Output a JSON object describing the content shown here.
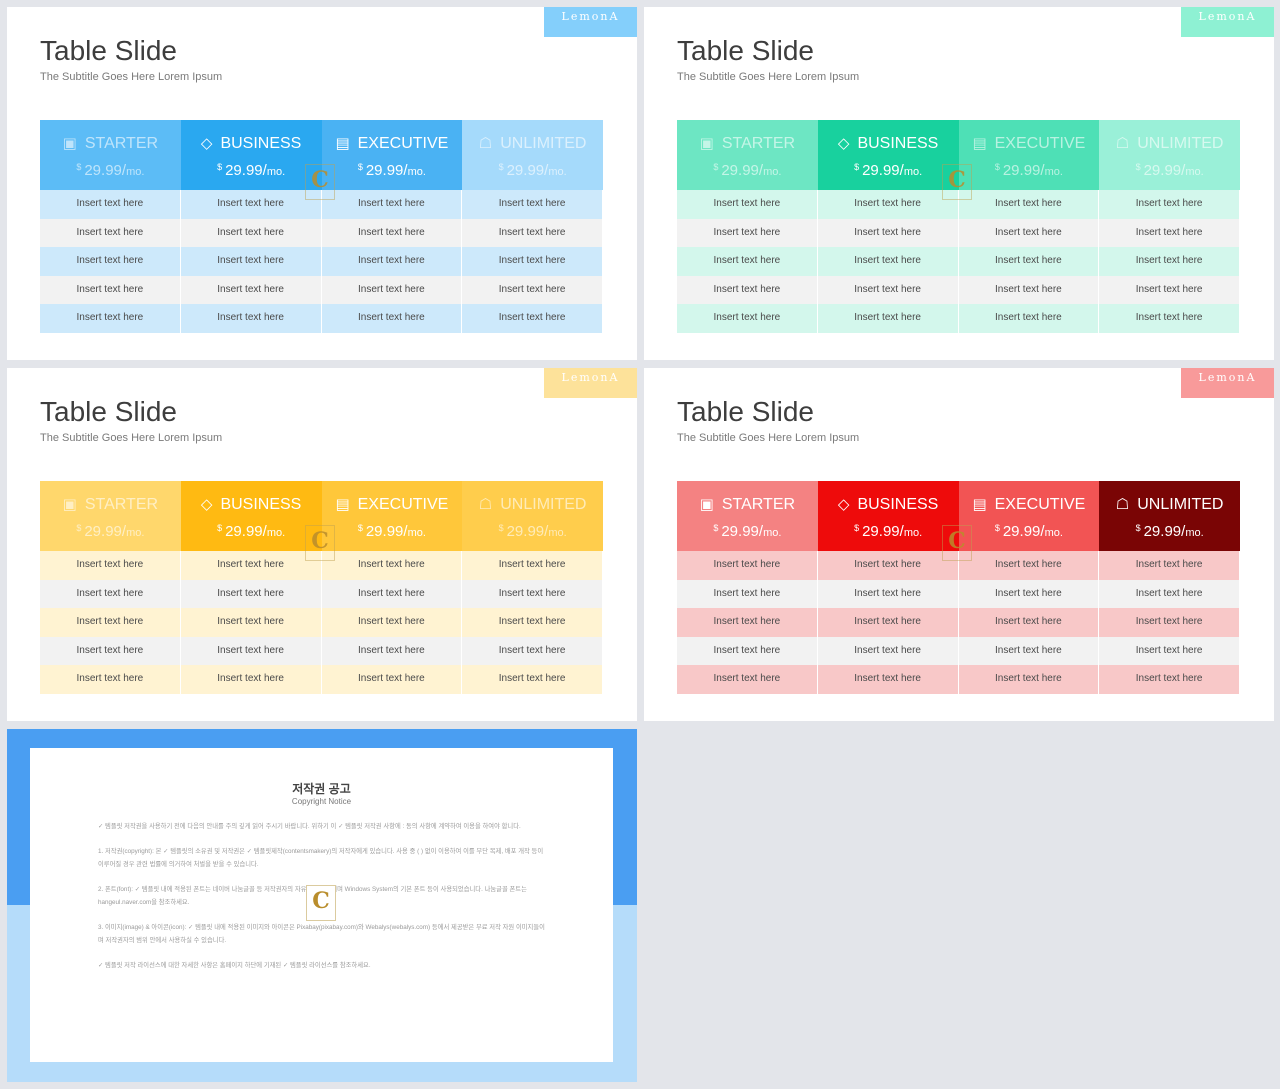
{
  "slides": [
    {
      "title": "Table Slide",
      "subtitle": "The Subtitle Goes Here Lorem Ipsum",
      "brand": "LemonA",
      "colors": {
        "tag": "#84cffb",
        "headers": [
          "#5cbcf6",
          "#2aa8f0",
          "#4ab2f3",
          "#a5dafb"
        ],
        "dim": [
          true,
          false,
          false,
          true
        ],
        "row_alt": "#cde9fb",
        "row_plain": "#f2f2f2"
      }
    },
    {
      "title": "Table Slide",
      "subtitle": "The Subtitle Goes Here Lorem Ipsum",
      "brand": "LemonA",
      "colors": {
        "tag": "#8ef1d3",
        "headers": [
          "#6de6c3",
          "#18d19e",
          "#4ee0b6",
          "#9af0d8"
        ],
        "dim": [
          true,
          false,
          true,
          true
        ],
        "row_alt": "#d3f7ec",
        "row_plain": "#f2f2f2"
      }
    },
    {
      "title": "Table Slide",
      "subtitle": "The Subtitle Goes Here Lorem Ipsum",
      "brand": "LemonA",
      "colors": {
        "tag": "#fde29a",
        "headers": [
          "#ffd76c",
          "#ffba12",
          "#ffc73a",
          "#ffcd4c"
        ],
        "dim": [
          true,
          false,
          false,
          true
        ],
        "row_alt": "#fff3d2",
        "row_plain": "#f2f2f2"
      }
    },
    {
      "title": "Table Slide",
      "subtitle": "The Subtitle Goes Here Lorem Ipsum",
      "brand": "LemonA",
      "colors": {
        "tag": "#f89a9a",
        "headers": [
          "#f48282",
          "#ee0b0b",
          "#f25454",
          "#7a0505"
        ],
        "dim": [
          false,
          false,
          false,
          false
        ],
        "row_alt": "#f8c8c8",
        "row_plain": "#f2f2f2"
      }
    }
  ],
  "plans": [
    {
      "name": "STARTER",
      "icon": "wallet-icon",
      "glyph": "▣"
    },
    {
      "name": "BUSINESS",
      "icon": "diamond-icon",
      "glyph": "◇"
    },
    {
      "name": "EXECUTIVE",
      "icon": "money-bag-icon",
      "glyph": "▤"
    },
    {
      "name": "UNLIMITED",
      "icon": "hand-coins-icon",
      "glyph": "☖"
    }
  ],
  "price": {
    "currency": "$",
    "amount": "29.99/",
    "period": "mo."
  },
  "cell_text": "Insert text here",
  "row_count": 5,
  "watermark": "C",
  "copyright": {
    "colors": {
      "top": "#4a9ef2",
      "bottom": "#b5dcfa"
    },
    "title": "저작권 공고",
    "subtitle": "Copyright Notice",
    "paragraphs": [
      "✓ 템플릿 저작권을 사용하기 전에 다음의 안내를 주의 깊게 읽어 주시기 바랍니다. 위하기 이 ✓ 템플릿 저작권 사항에 : 동의 사항에 계약하여 이용을 하여야 합니다.",
      "1. 저작권(copyright): 본 ✓ 템플릿의 소유권 및 저작권은 ✓ 템플릿제작(contentsmakery)의 저작자에게 있습니다. 사용 중 ( ) 없이 이용하여 이를 무단 복제, 배포 개작 등이 이루어질 경우 관련 법률에 의거하여 처벌을 받을 수 있습니다.",
      "2. 폰트(font): ✓ 템플릿 내에 적용된 폰트는 네이버 나눔글꼴 등 저작권자의 자유이용 폰트이며 Windows System의 기본 폰트 등이 사용되었습니다. 나눔글꼴 폰트는 hangeul.naver.com을 참조하세요.",
      "3. 이미지(image) & 아이콘(icon): ✓ 템플릿 내에 적용된 이미지와 아이콘은 Pixabay(pixabay.com)와 Webalys(webalys.com) 등에서 제공받은 무료 저작 자원 이미지들이며 저작권자의 범위 안에서 사용하실 수 있습니다.",
      "✓ 템플릿 저작 라이선스에 대한 자세한 사항은 홈페이지 하단에 기재된 ✓ 템플릿 라이선스를 참조하세요."
    ]
  }
}
